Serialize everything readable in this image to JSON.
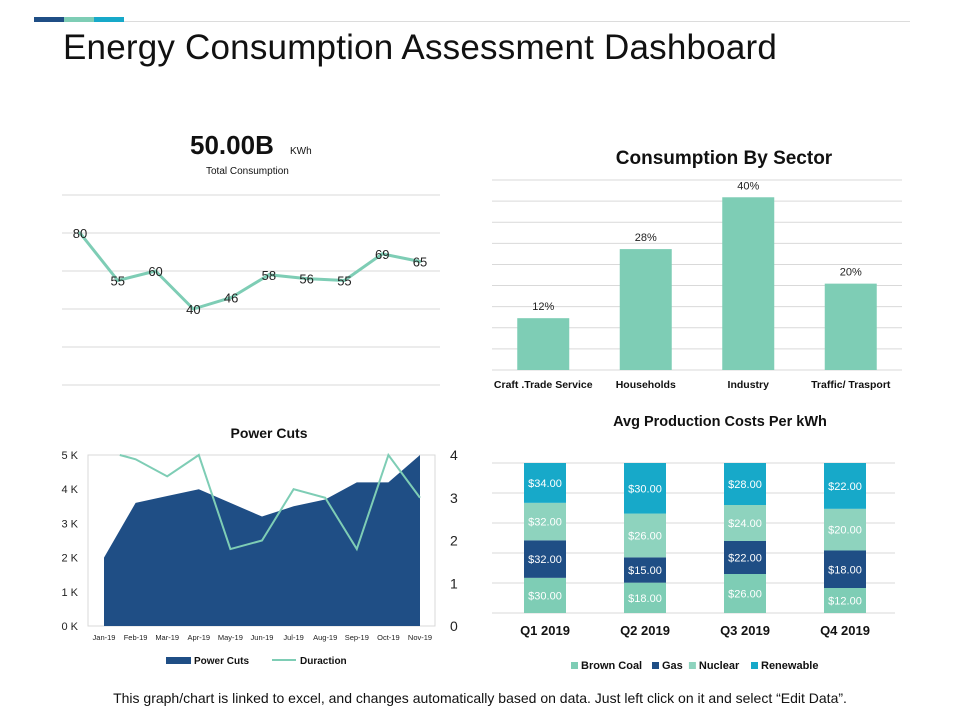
{
  "title": "Energy Consumption Assessment Dashboard",
  "accent_colors": [
    "#1f4e85",
    "#7ecdb5",
    "#17a9c9"
  ],
  "kpi": {
    "value": "50.00B",
    "unit": "KWh",
    "label": "Total Consumption"
  },
  "footer_note": "This graph/chart is linked to excel, and changes automatically based on data.  Just left click on it and select “Edit Data”.",
  "chart_data": [
    {
      "id": "total-consumption",
      "type": "line",
      "title": "",
      "color": "#7ecdb5",
      "values": [
        80,
        55,
        60,
        40,
        46,
        58,
        56,
        55,
        69,
        65
      ],
      "ylim": [
        0,
        100
      ],
      "grid": true
    },
    {
      "id": "consumption-by-sector",
      "type": "bar",
      "title": "Consumption By Sector",
      "color": "#7ecdb5",
      "categories": [
        "Craft .Trade Service",
        "Households",
        "Industry",
        "Traffic/ Trasport"
      ],
      "values": [
        12,
        28,
        40,
        20
      ],
      "value_labels": [
        "12%",
        "28%",
        "40%",
        "20%"
      ],
      "ylim": [
        0,
        44
      ],
      "grid": true
    },
    {
      "id": "power-cuts",
      "type": "area",
      "title": "Power Cuts",
      "categories": [
        "Jan-19",
        "Feb-19",
        "Mar-19",
        "Apr-19",
        "May-19",
        "Jun-19",
        "Jul-19",
        "Aug-19",
        "Sep-19",
        "Oct-19",
        "Nov-19"
      ],
      "series": [
        {
          "name": "Power Cuts",
          "type": "area",
          "axis": "left",
          "color": "#1f4e85",
          "values": [
            2000,
            3600,
            3800,
            4000,
            3600,
            3200,
            3500,
            3700,
            4200,
            4200,
            5000
          ]
        },
        {
          "name": "Duraction",
          "type": "line",
          "axis": "right",
          "color": "#7ecdb5",
          "values": [
            null,
            3.9,
            3.5,
            4.0,
            1.8,
            2.0,
            3.2,
            3.0,
            1.8,
            4.0,
            3.0
          ]
        }
      ],
      "ylim_left": [
        0,
        5000
      ],
      "yticks_left": [
        "0 K",
        "1 K",
        "2 K",
        "3 K",
        "4 K",
        "5 K"
      ],
      "ylim_right": [
        0,
        4
      ],
      "yticks_right": [
        "0",
        "1",
        "2",
        "3",
        "4"
      ],
      "legend_position": "bottom"
    },
    {
      "id": "avg-production-costs",
      "type": "bar",
      "stacked": true,
      "title": "Avg Production Costs Per kWh",
      "categories": [
        "Q1 2019",
        "Q2 2019",
        "Q3 2019",
        "Q4 2019"
      ],
      "series": [
        {
          "name": "Brown Coal",
          "color": "#7ecdb5",
          "values": [
            30,
            18,
            26,
            12
          ],
          "labels": [
            "$30.00",
            "$18.00",
            "$26.00",
            "$12.00"
          ]
        },
        {
          "name": "Gas",
          "color": "#1f4e85",
          "values": [
            32,
            15,
            22,
            18
          ],
          "labels": [
            "$32.00",
            "$15.00",
            "$22.00",
            "$18.00"
          ]
        },
        {
          "name": "Nuclear",
          "color": "#8ed3be",
          "values": [
            32,
            26,
            24,
            20
          ],
          "labels": [
            "$32.00",
            "$26.00",
            "$24.00",
            "$20.00"
          ]
        },
        {
          "name": "Renewable",
          "color": "#17a9c9",
          "values": [
            34,
            30,
            28,
            22
          ],
          "labels": [
            "$34.00",
            "$30.00",
            "$28.00",
            "$22.00"
          ]
        }
      ],
      "normalized": true,
      "legend_position": "bottom",
      "grid": true
    }
  ]
}
